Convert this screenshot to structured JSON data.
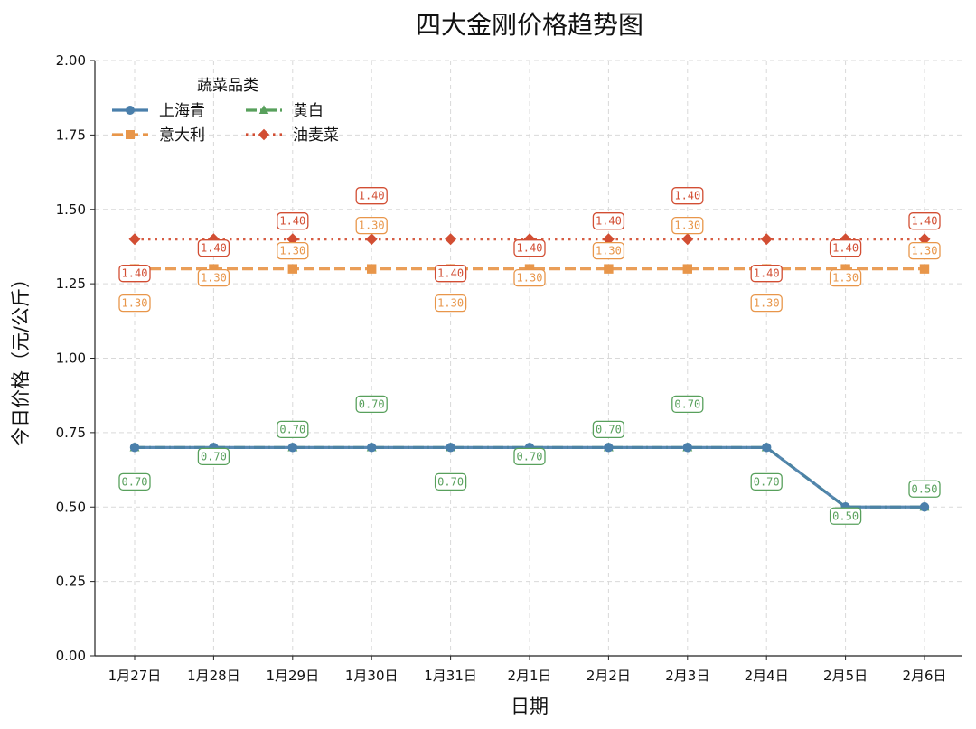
{
  "chart_data": {
    "type": "line",
    "title": "四大金刚价格趋势图",
    "xlabel": "日期",
    "ylabel": "今日价格（元/公斤）",
    "categories": [
      "1月27日",
      "1月28日",
      "1月29日",
      "1月30日",
      "1月31日",
      "2月1日",
      "2月2日",
      "2月3日",
      "2月4日",
      "2月5日",
      "2月6日"
    ],
    "ylim": [
      0,
      2
    ],
    "yticks": [
      "0.00",
      "0.25",
      "0.50",
      "0.75",
      "1.00",
      "1.25",
      "1.50",
      "1.75",
      "2.00"
    ],
    "grid": true,
    "legend": {
      "title": "蔬菜品类",
      "placement": "top-left",
      "columns": 2
    },
    "series": [
      {
        "name": "上海青",
        "values": [
          0.7,
          0.7,
          0.7,
          0.7,
          0.7,
          0.7,
          0.7,
          0.7,
          0.7,
          0.5,
          0.5
        ],
        "labels": [],
        "color": "#4a7fab",
        "marker": "circle",
        "dash": "solid"
      },
      {
        "name": "意大利",
        "values": [
          1.3,
          1.3,
          1.3,
          1.3,
          1.3,
          1.3,
          1.3,
          1.3,
          1.3,
          1.3,
          1.3
        ],
        "labels": [
          "1.30",
          "1.30",
          "1.30",
          "1.30",
          "1.30",
          "1.30",
          "1.30",
          "1.30",
          "1.30",
          "1.30",
          "1.30"
        ],
        "color": "#e8964a",
        "marker": "square",
        "dash": "dashed"
      },
      {
        "name": "黄白",
        "values": [
          0.7,
          0.7,
          0.7,
          0.7,
          0.7,
          0.7,
          0.7,
          0.7,
          0.7,
          0.5,
          0.5
        ],
        "labels": [
          "0.70",
          "0.70",
          "0.70",
          "0.70",
          "0.70",
          "0.70",
          "0.70",
          "0.70",
          "0.70",
          "0.50",
          "0.50"
        ],
        "color": "#58a05c",
        "marker": "triangle",
        "dash": "dashdot"
      },
      {
        "name": "油麦菜",
        "values": [
          1.4,
          1.4,
          1.4,
          1.4,
          1.4,
          1.4,
          1.4,
          1.4,
          1.4,
          1.4,
          1.4
        ],
        "labels": [
          "1.40",
          "1.40",
          "1.40",
          "1.40",
          "1.40",
          "1.40",
          "1.40",
          "1.40",
          "1.40",
          "1.40",
          "1.40"
        ],
        "color": "#d24e33",
        "marker": "diamond",
        "dash": "dotted"
      }
    ]
  }
}
